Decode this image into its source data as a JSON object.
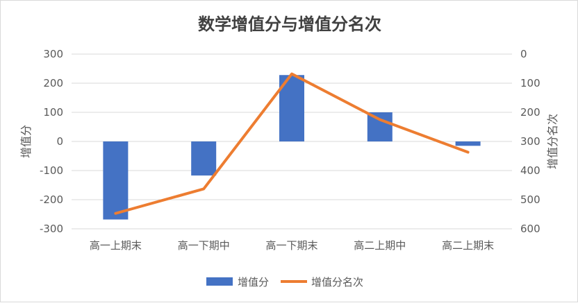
{
  "chart_data": {
    "type": "bar+line",
    "title": "数学增值分与增值分名次",
    "categories": [
      "高一上期末",
      "高一下期中",
      "高一下期末",
      "高二上期中",
      "高二上期末"
    ],
    "series": [
      {
        "name": "增值分",
        "type": "bar",
        "axis": "left",
        "values": [
          -268,
          -117,
          228,
          100,
          -15
        ],
        "color": "#4472C4"
      },
      {
        "name": "增值分名次",
        "type": "line",
        "axis": "right",
        "values": [
          547,
          463,
          68,
          225,
          337
        ],
        "color": "#ED7D31"
      }
    ],
    "left_axis": {
      "label": "增值分",
      "ylim": [
        -300,
        300
      ],
      "ticks": [
        "300",
        "200",
        "100",
        "0",
        "-100",
        "-200",
        "-300"
      ]
    },
    "right_axis": {
      "label": "增值分名次",
      "ylim": [
        0,
        600
      ],
      "reversed": true,
      "ticks": [
        "0",
        "100",
        "200",
        "300",
        "400",
        "500",
        "600"
      ]
    },
    "grid": "horizontal",
    "legend_position": "bottom"
  }
}
